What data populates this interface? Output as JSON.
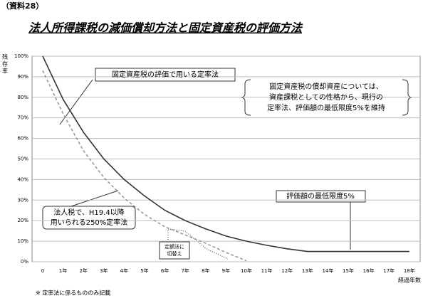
{
  "header": "（資料28）",
  "chart_data": {
    "type": "line",
    "title": "法人所得課税の減価償却方法と固定資産税の評価方法",
    "ylabel": "残存率",
    "xlabel": "経過年数",
    "categories": [
      "0",
      "1年",
      "2年",
      "3年",
      "4年",
      "5年",
      "6年",
      "7年",
      "8年",
      "9年",
      "10年",
      "11年",
      "12年",
      "13年",
      "14年",
      "15年",
      "16年",
      "17年",
      "18年"
    ],
    "series": [
      {
        "color": "#333333",
        "dash": false,
        "values": [
          100,
          79,
          63,
          50,
          40,
          32,
          25,
          20,
          16,
          12.5,
          10,
          8,
          6.3,
          5,
          5,
          5,
          5,
          5,
          5
        ]
      },
      {
        "color": "#999999",
        "dash": true,
        "values": [
          93,
          72,
          54,
          41,
          31,
          23,
          17,
          13,
          9,
          4.5,
          0.5,
          null,
          null,
          null,
          null,
          null,
          null,
          null,
          null
        ]
      }
    ],
    "ylim": [
      0,
      100
    ],
    "yticks": [
      {
        "value": 0,
        "label": "0%"
      },
      {
        "value": 10,
        "label": "10%"
      },
      {
        "value": 20,
        "label": "20%"
      },
      {
        "value": 30,
        "label": "30%"
      },
      {
        "value": 40,
        "label": "40%"
      },
      {
        "value": 50,
        "label": "50%"
      },
      {
        "value": 60,
        "label": "60%"
      },
      {
        "value": 70,
        "label": "70%"
      },
      {
        "value": 80,
        "label": "80%"
      },
      {
        "value": 90,
        "label": "90%"
      },
      {
        "value": 100,
        "label": "100%"
      }
    ],
    "grid": true,
    "annotations": [
      {
        "lines": [
          "固定資産税の評価で用いる定率法"
        ]
      },
      {
        "lines": [
          "固定資産税の償却資産については、",
          "資産課税としての性格から、現行の",
          "定率法、評価額の最低限度5%を維持"
        ]
      },
      {
        "lines": [
          "法人税で、H19.4以降",
          "用いられる250%定率法"
        ]
      },
      {
        "lines": [
          "定額法に",
          "切替え"
        ]
      },
      {
        "lines": [
          "評価額の最低限度5%"
        ]
      }
    ]
  },
  "footnote": "※ 定率法に係るもののみ記載"
}
